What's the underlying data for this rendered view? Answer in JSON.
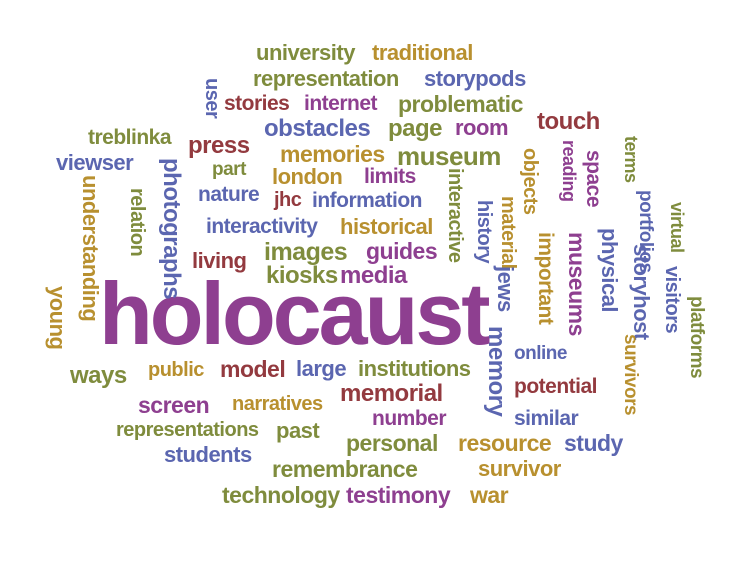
{
  "palette": {
    "purple": "#8e3f90",
    "olive": "#7f8c3d",
    "gold": "#b8902f",
    "blue": "#5b66b0",
    "maroon": "#933a3f"
  },
  "words": [
    {
      "id": "holocaust",
      "text": "holocaust",
      "color": "purple"
    },
    {
      "id": "university",
      "text": "university",
      "color": "olive"
    },
    {
      "id": "traditional",
      "text": "traditional",
      "color": "gold"
    },
    {
      "id": "representation",
      "text": "representation",
      "color": "olive"
    },
    {
      "id": "storypods",
      "text": "storypods",
      "color": "blue"
    },
    {
      "id": "user",
      "text": "user",
      "color": "blue"
    },
    {
      "id": "stories",
      "text": "stories",
      "color": "maroon"
    },
    {
      "id": "internet",
      "text": "internet",
      "color": "purple"
    },
    {
      "id": "problematic",
      "text": "problematic",
      "color": "olive"
    },
    {
      "id": "treblinka",
      "text": "treblinka",
      "color": "olive"
    },
    {
      "id": "obstacles",
      "text": "obstacles",
      "color": "blue"
    },
    {
      "id": "page",
      "text": "page",
      "color": "olive"
    },
    {
      "id": "room",
      "text": "room",
      "color": "purple"
    },
    {
      "id": "touch",
      "text": "touch",
      "color": "maroon"
    },
    {
      "id": "press",
      "text": "press",
      "color": "maroon"
    },
    {
      "id": "memories",
      "text": "memories",
      "color": "gold"
    },
    {
      "id": "museum",
      "text": "museum",
      "color": "olive"
    },
    {
      "id": "viewser",
      "text": "viewser",
      "color": "blue"
    },
    {
      "id": "part",
      "text": "part",
      "color": "olive"
    },
    {
      "id": "london",
      "text": "london",
      "color": "gold"
    },
    {
      "id": "limits",
      "text": "limits",
      "color": "purple"
    },
    {
      "id": "photographs",
      "text": "photographs",
      "color": "blue"
    },
    {
      "id": "nature",
      "text": "nature",
      "color": "blue"
    },
    {
      "id": "jhc",
      "text": "jhc",
      "color": "maroon"
    },
    {
      "id": "information",
      "text": "information",
      "color": "blue"
    },
    {
      "id": "understanding",
      "text": "understanding",
      "color": "gold"
    },
    {
      "id": "relation",
      "text": "relation",
      "color": "olive"
    },
    {
      "id": "interactivity",
      "text": "interactivity",
      "color": "blue"
    },
    {
      "id": "historical",
      "text": "historical",
      "color": "gold"
    },
    {
      "id": "interactive",
      "text": "interactive",
      "color": "olive"
    },
    {
      "id": "objects",
      "text": "objects",
      "color": "gold"
    },
    {
      "id": "reading",
      "text": "reading",
      "color": "purple"
    },
    {
      "id": "space",
      "text": "space",
      "color": "purple"
    },
    {
      "id": "terms",
      "text": "terms",
      "color": "olive"
    },
    {
      "id": "portfolios",
      "text": "portfolios",
      "color": "blue"
    },
    {
      "id": "virtual",
      "text": "virtual",
      "color": "olive"
    },
    {
      "id": "living",
      "text": "living",
      "color": "maroon"
    },
    {
      "id": "images",
      "text": "images",
      "color": "olive"
    },
    {
      "id": "guides",
      "text": "guides",
      "color": "purple"
    },
    {
      "id": "history",
      "text": "history",
      "color": "blue"
    },
    {
      "id": "material",
      "text": "material",
      "color": "gold"
    },
    {
      "id": "kiosks",
      "text": "kiosks",
      "color": "olive"
    },
    {
      "id": "media",
      "text": "media",
      "color": "purple"
    },
    {
      "id": "important",
      "text": "important",
      "color": "gold"
    },
    {
      "id": "museums",
      "text": "museums",
      "color": "purple"
    },
    {
      "id": "physical",
      "text": "physical",
      "color": "blue"
    },
    {
      "id": "storyhost",
      "text": "storyhost",
      "color": "blue"
    },
    {
      "id": "jews",
      "text": "jews",
      "color": "blue"
    },
    {
      "id": "young",
      "text": "young",
      "color": "gold"
    },
    {
      "id": "platforms",
      "text": "platforms",
      "color": "olive"
    },
    {
      "id": "visitors",
      "text": "visitors",
      "color": "blue"
    },
    {
      "id": "survivors",
      "text": "survivors",
      "color": "gold"
    },
    {
      "id": "memory",
      "text": "memory",
      "color": "blue"
    },
    {
      "id": "online",
      "text": "online",
      "color": "blue"
    },
    {
      "id": "ways",
      "text": "ways",
      "color": "olive"
    },
    {
      "id": "public",
      "text": "public",
      "color": "gold"
    },
    {
      "id": "model",
      "text": "model",
      "color": "maroon"
    },
    {
      "id": "large",
      "text": "large",
      "color": "blue"
    },
    {
      "id": "institutions",
      "text": "institutions",
      "color": "olive"
    },
    {
      "id": "memorial",
      "text": "memorial",
      "color": "maroon"
    },
    {
      "id": "potential",
      "text": "potential",
      "color": "maroon"
    },
    {
      "id": "screen",
      "text": "screen",
      "color": "purple"
    },
    {
      "id": "narratives",
      "text": "narratives",
      "color": "gold"
    },
    {
      "id": "number",
      "text": "number",
      "color": "purple"
    },
    {
      "id": "similar",
      "text": "similar",
      "color": "blue"
    },
    {
      "id": "representations",
      "text": "representations",
      "color": "olive"
    },
    {
      "id": "past",
      "text": "past",
      "color": "olive"
    },
    {
      "id": "personal",
      "text": "personal",
      "color": "olive"
    },
    {
      "id": "resource",
      "text": "resource",
      "color": "gold"
    },
    {
      "id": "study",
      "text": "study",
      "color": "blue"
    },
    {
      "id": "students",
      "text": "students",
      "color": "blue"
    },
    {
      "id": "remembrance",
      "text": "remembrance",
      "color": "olive"
    },
    {
      "id": "survivor",
      "text": "survivor",
      "color": "gold"
    },
    {
      "id": "technology",
      "text": "technology",
      "color": "olive"
    },
    {
      "id": "testimony",
      "text": "testimony",
      "color": "purple"
    },
    {
      "id": "war",
      "text": "war",
      "color": "gold"
    }
  ]
}
